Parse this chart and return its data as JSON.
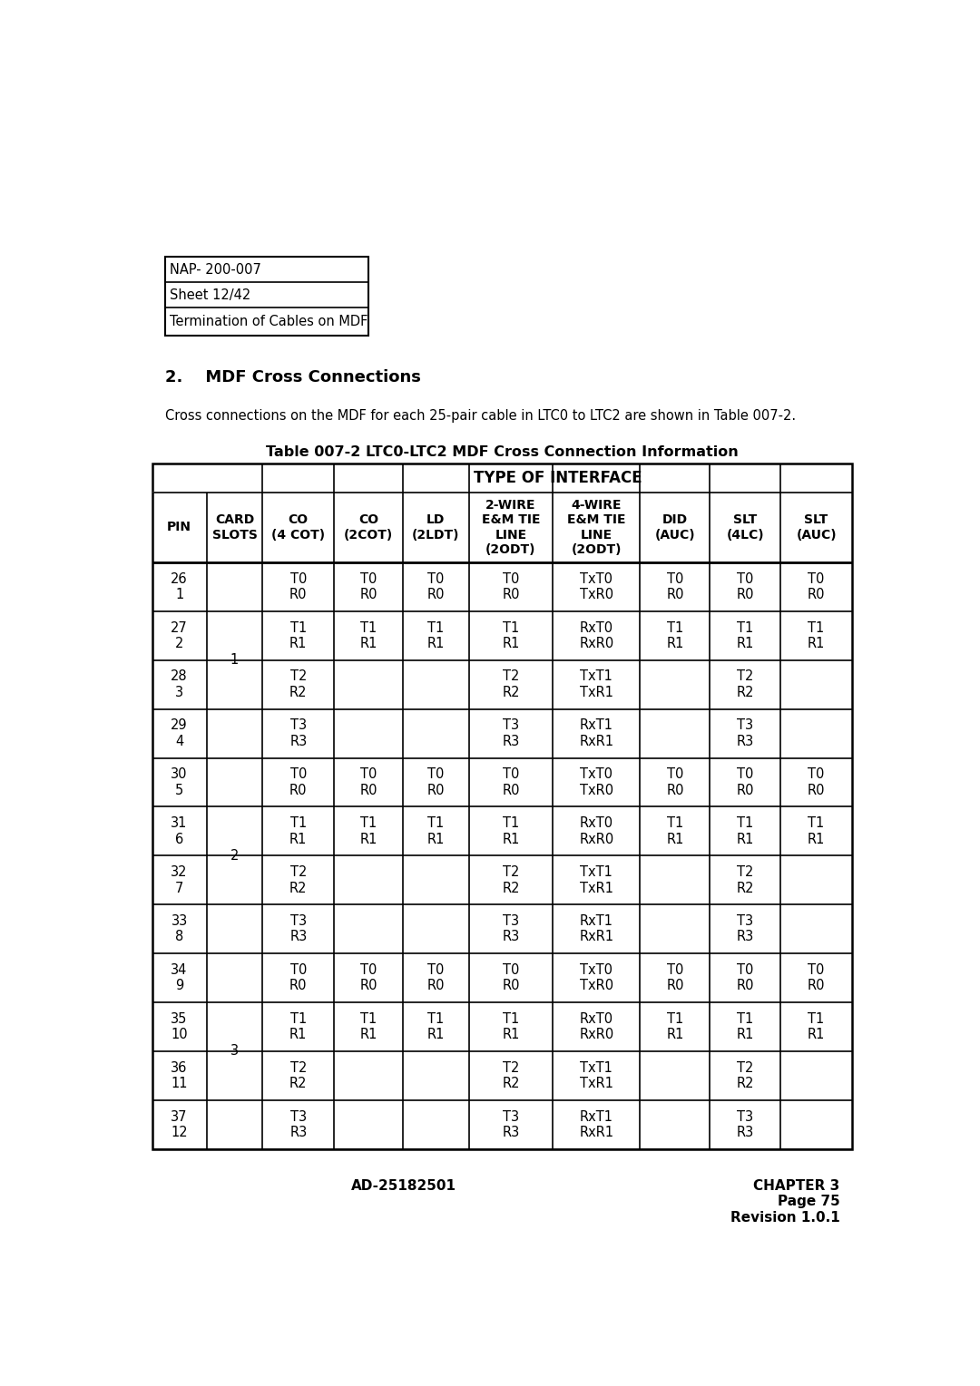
{
  "page_bg": "#ffffff",
  "header_box": {
    "lines": [
      "NAP- 200-007",
      "Sheet 12/42",
      "Termination of Cables on MDF"
    ]
  },
  "section_title": "2.    MDF Cross Connections",
  "body_text": "Cross connections on the MDF for each 25-pair cable in LTC0 to LTC2 are shown in Table 007-2.",
  "table_title": "Table 007-2 LTC0-LTC2 MDF Cross Connection Information",
  "col_headers_row2": [
    "PIN",
    "CARD\nSLOTS",
    "CO\n(4 COT)",
    "CO\n(2COT)",
    "LD\n(2LDT)",
    "2-WIRE\nE&M TIE\nLINE\n(2ODT)",
    "4-WIRE\nE&M TIE\nLINE\n(2ODT)",
    "DID\n(AUC)",
    "SLT\n(4LC)",
    "SLT\n(AUC)"
  ],
  "rows": [
    [
      "26\n1",
      "",
      "T0\nR0",
      "T0\nR0",
      "T0\nR0",
      "T0\nR0",
      "TxT0\nTxR0",
      "T0\nR0",
      "T0\nR0",
      "T0\nR0"
    ],
    [
      "27\n2",
      "",
      "T1\nR1",
      "T1\nR1",
      "T1\nR1",
      "T1\nR1",
      "RxT0\nRxR0",
      "T1\nR1",
      "T1\nR1",
      "T1\nR1"
    ],
    [
      "28\n3",
      "",
      "T2\nR2",
      "",
      "",
      "T2\nR2",
      "TxT1\nTxR1",
      "",
      "T2\nR2",
      ""
    ],
    [
      "29\n4",
      "",
      "T3\nR3",
      "",
      "",
      "T3\nR3",
      "RxT1\nRxR1",
      "",
      "T3\nR3",
      ""
    ],
    [
      "30\n5",
      "",
      "T0\nR0",
      "T0\nR0",
      "T0\nR0",
      "T0\nR0",
      "TxT0\nTxR0",
      "T0\nR0",
      "T0\nR0",
      "T0\nR0"
    ],
    [
      "31\n6",
      "",
      "T1\nR1",
      "T1\nR1",
      "T1\nR1",
      "T1\nR1",
      "RxT0\nRxR0",
      "T1\nR1",
      "T1\nR1",
      "T1\nR1"
    ],
    [
      "32\n7",
      "",
      "T2\nR2",
      "",
      "",
      "T2\nR2",
      "TxT1\nTxR1",
      "",
      "T2\nR2",
      ""
    ],
    [
      "33\n8",
      "",
      "T3\nR3",
      "",
      "",
      "T3\nR3",
      "RxT1\nRxR1",
      "",
      "T3\nR3",
      ""
    ],
    [
      "34\n9",
      "",
      "T0\nR0",
      "T0\nR0",
      "T0\nR0",
      "T0\nR0",
      "TxT0\nTxR0",
      "T0\nR0",
      "T0\nR0",
      "T0\nR0"
    ],
    [
      "35\n10",
      "",
      "T1\nR1",
      "T1\nR1",
      "T1\nR1",
      "T1\nR1",
      "RxT0\nRxR0",
      "T1\nR1",
      "T1\nR1",
      "T1\nR1"
    ],
    [
      "36\n11",
      "",
      "T2\nR2",
      "",
      "",
      "T2\nR2",
      "TxT1\nTxR1",
      "",
      "T2\nR2",
      ""
    ],
    [
      "37\n12",
      "",
      "T3\nR3",
      "",
      "",
      "T3\nR3",
      "RxT1\nRxR1",
      "",
      "T3\nR3",
      ""
    ]
  ],
  "card_slot_groups": [
    [
      0,
      3,
      "1"
    ],
    [
      4,
      7,
      "2"
    ],
    [
      8,
      11,
      "3"
    ]
  ],
  "footer_left": "AD-25182501",
  "footer_right": "CHAPTER 3\nPage 75\nRevision 1.0.1",
  "col_props": [
    0.7,
    0.72,
    0.92,
    0.88,
    0.85,
    1.08,
    1.12,
    0.9,
    0.9,
    0.93
  ]
}
